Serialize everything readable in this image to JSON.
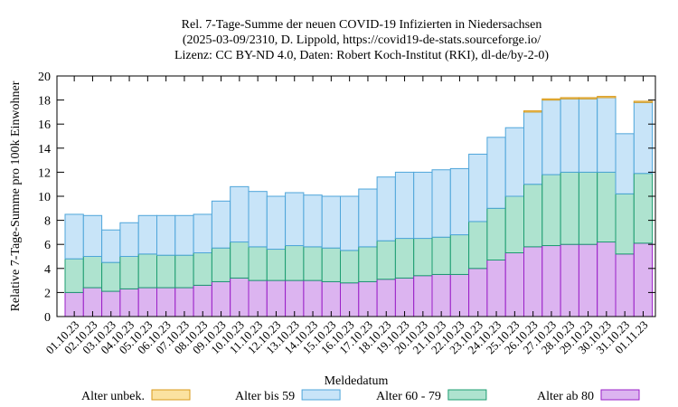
{
  "chart_data": {
    "type": "bar",
    "stacked": true,
    "title_lines": [
      "Rel. 7-Tage-Summe der neuen COVID-19 Infizierten in Niedersachsen",
      "(2025-03-09/2310, D. Lippold, https://covid19-de-stats.sourceforge.io/",
      "Lizenz: CC BY-ND 4.0, Daten: Robert Koch-Institut (RKI), dl-de/by-2-0)"
    ],
    "xlabel": "Meldedatum",
    "ylabel": "Relative 7-Tage-Summe pro 100k Einwohner",
    "ylim": [
      0,
      20
    ],
    "yticks": [
      0,
      2,
      4,
      6,
      8,
      10,
      12,
      14,
      16,
      18,
      20
    ],
    "grid": false,
    "legend_position": "bottom",
    "categories": [
      "01.10.23",
      "02.10.23",
      "03.10.23",
      "04.10.23",
      "05.10.23",
      "06.10.23",
      "07.10.23",
      "08.10.23",
      "09.10.23",
      "10.10.23",
      "11.10.23",
      "12.10.23",
      "13.10.23",
      "14.10.23",
      "15.10.23",
      "16.10.23",
      "17.10.23",
      "18.10.23",
      "19.10.23",
      "20.10.23",
      "21.10.23",
      "22.10.23",
      "23.10.23",
      "24.10.23",
      "25.10.23",
      "26.10.23",
      "27.10.23",
      "28.10.23",
      "29.10.23",
      "30.10.23",
      "31.10.23",
      "01.11.23"
    ],
    "series": [
      {
        "name": "Alter ab 80",
        "color": "#dcb4f0",
        "edge": "#9a1fc7",
        "values": [
          2.0,
          2.4,
          2.1,
          2.3,
          2.4,
          2.4,
          2.4,
          2.6,
          2.9,
          3.2,
          3.0,
          3.0,
          3.0,
          3.0,
          2.9,
          2.8,
          2.9,
          3.1,
          3.2,
          3.4,
          3.5,
          3.5,
          4.0,
          4.7,
          5.3,
          5.8,
          5.9,
          6.0,
          6.0,
          6.2,
          5.2,
          6.1
        ]
      },
      {
        "name": "Alter 60 - 79",
        "color": "#aee3cf",
        "edge": "#1c9c70",
        "values": [
          2.8,
          2.6,
          2.4,
          2.7,
          2.8,
          2.7,
          2.7,
          2.7,
          2.8,
          3.0,
          2.8,
          2.6,
          2.9,
          2.8,
          2.8,
          2.7,
          2.9,
          3.2,
          3.3,
          3.1,
          3.1,
          3.3,
          3.9,
          4.3,
          4.7,
          5.2,
          5.9,
          6.0,
          6.0,
          5.8,
          5.0,
          5.8
        ]
      },
      {
        "name": "Alter bis 59",
        "color": "#c8e4f8",
        "edge": "#4ea5da",
        "values": [
          3.7,
          3.4,
          2.7,
          2.8,
          3.2,
          3.3,
          3.3,
          3.2,
          3.9,
          4.6,
          4.6,
          4.4,
          4.4,
          4.3,
          4.3,
          4.5,
          4.8,
          5.3,
          5.5,
          5.5,
          5.6,
          5.5,
          5.6,
          5.9,
          5.7,
          6.0,
          6.2,
          6.1,
          6.1,
          6.2,
          5.0,
          5.9
        ]
      },
      {
        "name": "Alter unbek.",
        "color": "#fbe2a0",
        "edge": "#d99a1a",
        "values": [
          0,
          0,
          0,
          0,
          0,
          0,
          0,
          0,
          0,
          0,
          0,
          0,
          0,
          0,
          0,
          0,
          0,
          0,
          0,
          0,
          0,
          0,
          0,
          0,
          0,
          0.1,
          0.1,
          0.1,
          0.1,
          0.1,
          0,
          0.1
        ]
      }
    ],
    "legend_order": [
      "Alter unbek.",
      "Alter bis 59",
      "Alter 60 - 79",
      "Alter ab 80"
    ]
  }
}
